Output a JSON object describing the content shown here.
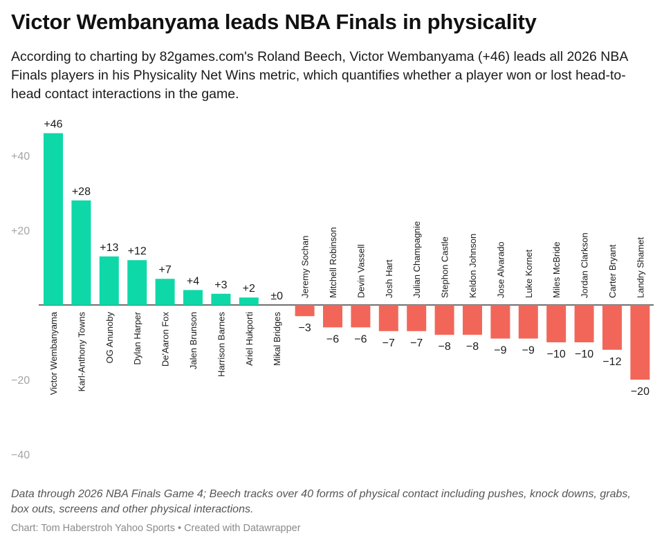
{
  "title": "Victor Wembanyama leads NBA Finals in physicality",
  "subtitle": "According to charting by 82games.com's Roland Beech, Victor Wembanyama (+46) leads all 2026 NBA Finals players in his Physicality Net Wins metric, which quantifies whether a player won or lost head-to-head contact interactions in the game.",
  "notes": "Data through 2026 NBA Finals Game 4; Beech tracks over 40 forms of physical contact including pushes, knock downs, grabs, box outs, screens and other physical interactions.",
  "source": "Chart: Tom Haberstroh Yahoo Sports • Created with Datawrapper",
  "colors": {
    "positive": "#0fd8a8",
    "negative": "#f2665a",
    "zero_line": "#1a1a1a",
    "tick_text": "#a6a6a6"
  },
  "chart_data": {
    "type": "bar",
    "orientation": "vertical",
    "categories": [
      "Victor Wembanyama",
      "Karl-Anthony Towns",
      "OG Anunoby",
      "Dylan Harper",
      "De'Aaron Fox",
      "Jalen Brunson",
      "Harrison Barnes",
      "Ariel Hukporti",
      "Mikal Bridges",
      "Jeremy Sochan",
      "Mitchell Robinson",
      "Devin Vassell",
      "Josh Hart",
      "Julian Champagnie",
      "Stephon Castle",
      "Keldon Johnson",
      "Jose Alvarado",
      "Luke Kornet",
      "Miles McBride",
      "Jordan Clarkson",
      "Carter Bryant",
      "Landry Shamet"
    ],
    "values": [
      46,
      28,
      13,
      12,
      7,
      4,
      3,
      2,
      0,
      -3,
      -6,
      -6,
      -7,
      -7,
      -8,
      -8,
      -9,
      -9,
      -10,
      -10,
      -12,
      -20
    ],
    "value_labels": [
      "+46",
      "+28",
      "+13",
      "+12",
      "+7",
      "+4",
      "+3",
      "+2",
      "±0",
      "−3",
      "−6",
      "−6",
      "−7",
      "−7",
      "−8",
      "−8",
      "−9",
      "−9",
      "−10",
      "−10",
      "−12",
      "−20"
    ],
    "y_ticks": [
      40,
      20,
      -20,
      -40
    ],
    "y_tick_labels": [
      "+40",
      "+20",
      "−20",
      "−40"
    ],
    "ylim": [
      -40,
      46
    ],
    "grid": false,
    "legend": "none"
  }
}
